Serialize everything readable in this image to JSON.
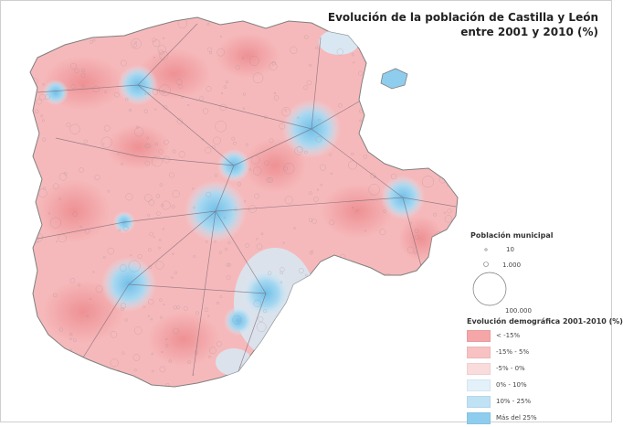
{
  "title": {
    "line1": "Evolución de la población de Castilla y León",
    "line2": "entre 2001 y 2010 (%)"
  },
  "population_legend": {
    "heading": "Población municipal",
    "sizes": [
      "10",
      "1.000",
      "100.000"
    ]
  },
  "evolution_legend": {
    "heading": "Evolución demográfica 2001-2010 (%)",
    "classes": [
      {
        "label": "< -15%",
        "color": "#f4a6a8"
      },
      {
        "label": "-15% - 5%",
        "color": "#f8c2c2"
      },
      {
        "label": "-5% - 0%",
        "color": "#fbdcdc"
      },
      {
        "label": "0% - 10%",
        "color": "#e3f1fa"
      },
      {
        "label": "10% - 25%",
        "color": "#bfe2f5"
      },
      {
        "label": "Más del 25%",
        "color": "#8fcdee"
      }
    ]
  },
  "colors": {
    "region_base": "#f6b9bb",
    "decline_strong": "#ef9a9d",
    "growth": "#8fcdee",
    "growth_light": "#cfe9f7",
    "roads": "#7a6a75",
    "border": "#7f7f7f"
  }
}
